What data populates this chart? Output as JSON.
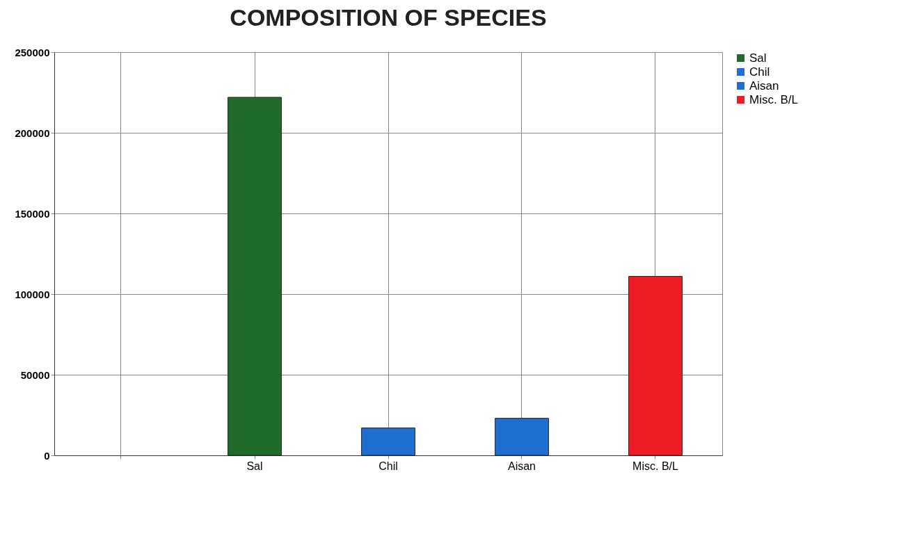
{
  "chart_data": {
    "type": "bar",
    "title": "COMPOSITION OF SPECIES",
    "categories": [
      null,
      "Sal",
      "Chil",
      "Aisan",
      "Misc. B/L"
    ],
    "series": [
      {
        "name": "Sal",
        "color": "#1e6b2a",
        "values": [
          null,
          222000,
          null,
          null,
          null
        ]
      },
      {
        "name": "Chil",
        "color": "#1f6fd0",
        "values": [
          null,
          null,
          17000,
          null,
          null
        ]
      },
      {
        "name": "Aisan",
        "color": "#1f6fd0",
        "values": [
          null,
          null,
          null,
          23000,
          null
        ]
      },
      {
        "name": "Misc. B/L",
        "color": "#ee1c25",
        "values": [
          null,
          null,
          null,
          null,
          111000
        ]
      }
    ],
    "ylim": [
      0,
      250000
    ],
    "yticks": [
      0,
      50000,
      100000,
      150000,
      200000,
      250000
    ],
    "grid": true,
    "legend": "right"
  }
}
